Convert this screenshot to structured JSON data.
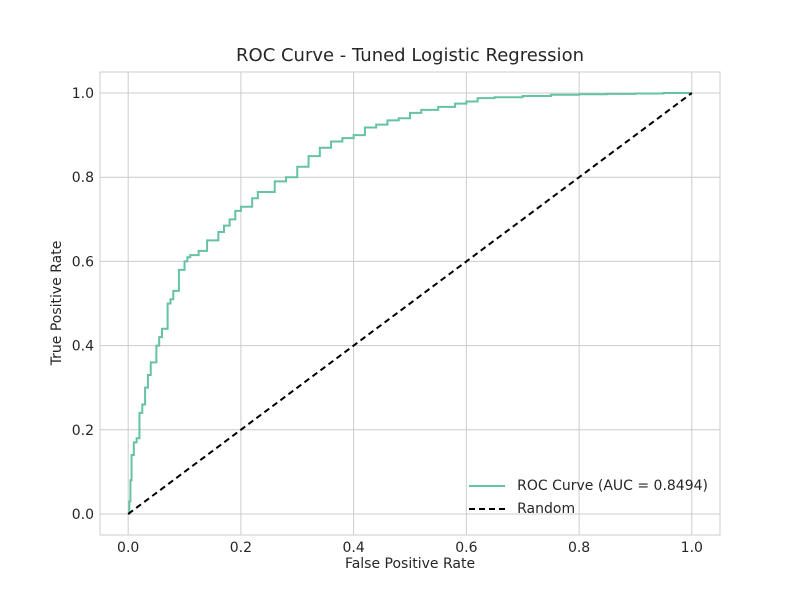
{
  "chart_data": {
    "type": "line",
    "title": "ROC Curve - Tuned Logistic Regression",
    "xlabel": "False Positive Rate",
    "ylabel": "True Positive Rate",
    "xlim": [
      -0.05,
      1.05
    ],
    "ylim": [
      -0.05,
      1.05
    ],
    "xticks": [
      "0.0",
      "0.2",
      "0.4",
      "0.6",
      "0.8",
      "1.0"
    ],
    "yticks": [
      "0.0",
      "0.2",
      "0.4",
      "0.6",
      "0.8",
      "1.0"
    ],
    "grid": true,
    "legend_position": "lower-right",
    "series": [
      {
        "name": "ROC Curve (AUC = 0.8494)",
        "color": "#66c2a5",
        "style": "solid",
        "x": [
          0.0,
          0.002,
          0.004,
          0.006,
          0.01,
          0.015,
          0.02,
          0.025,
          0.03,
          0.035,
          0.04,
          0.05,
          0.055,
          0.06,
          0.07,
          0.075,
          0.08,
          0.09,
          0.1,
          0.105,
          0.11,
          0.125,
          0.14,
          0.16,
          0.17,
          0.18,
          0.19,
          0.2,
          0.22,
          0.23,
          0.26,
          0.28,
          0.3,
          0.32,
          0.34,
          0.36,
          0.38,
          0.4,
          0.42,
          0.44,
          0.46,
          0.48,
          0.5,
          0.52,
          0.55,
          0.58,
          0.6,
          0.62,
          0.65,
          0.7,
          0.75,
          0.8,
          0.85,
          0.9,
          0.95,
          1.0
        ],
        "y": [
          0.0,
          0.03,
          0.08,
          0.14,
          0.17,
          0.18,
          0.24,
          0.26,
          0.3,
          0.33,
          0.36,
          0.4,
          0.42,
          0.44,
          0.5,
          0.51,
          0.53,
          0.58,
          0.6,
          0.61,
          0.615,
          0.625,
          0.65,
          0.67,
          0.685,
          0.7,
          0.72,
          0.73,
          0.75,
          0.765,
          0.79,
          0.8,
          0.825,
          0.85,
          0.87,
          0.885,
          0.893,
          0.9,
          0.918,
          0.925,
          0.935,
          0.94,
          0.953,
          0.96,
          0.967,
          0.975,
          0.98,
          0.988,
          0.99,
          0.993,
          0.996,
          0.997,
          0.998,
          0.999,
          1.0,
          1.0
        ]
      },
      {
        "name": "Random",
        "color": "#000000",
        "style": "dashed",
        "x": [
          0.0,
          1.0
        ],
        "y": [
          0.0,
          1.0
        ]
      }
    ]
  }
}
